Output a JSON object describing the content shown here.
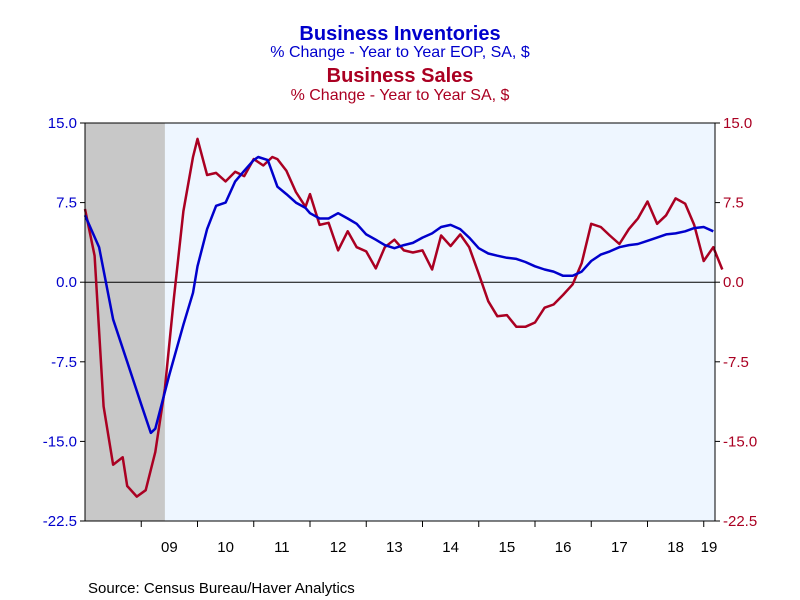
{
  "chart_data": {
    "type": "line",
    "titles": [
      {
        "text": "Business Inventories",
        "color": "#0000cc"
      },
      {
        "text": "% Change - Year to Year    EOP, SA, $",
        "color": "#0000cc"
      },
      {
        "text": "Business Sales",
        "color": "#aa0022"
      },
      {
        "text": "% Change - Year to Year    SA, $",
        "color": "#aa0022"
      }
    ],
    "source": "Source:  Census Bureau/Haver Analytics",
    "y_left": {
      "ticks": [
        "15.0",
        "7.5",
        "0.0",
        "-7.5",
        "-15.0",
        "-22.5"
      ],
      "values": [
        15,
        7.5,
        0,
        -7.5,
        -15,
        -22.5
      ],
      "range": [
        -22.5,
        15
      ],
      "color": "#0000cc"
    },
    "y_right": {
      "ticks": [
        "15.0",
        "7.5",
        "0.0",
        "-7.5",
        "-15.0",
        "-22.5"
      ],
      "values": [
        15,
        7.5,
        0,
        -7.5,
        -15,
        -22.5
      ],
      "range": [
        -22.5,
        15
      ],
      "color": "#aa0022"
    },
    "x_axis": {
      "labels": [
        "09",
        "10",
        "11",
        "12",
        "13",
        "14",
        "15",
        "16",
        "17",
        "18",
        "19"
      ],
      "positions": [
        2009.5,
        2010.5,
        2011.5,
        2012.5,
        2013.5,
        2014.5,
        2015.5,
        2016.5,
        2017.5,
        2018.5,
        2019.5
      ],
      "range": [
        2008.0,
        2019.2
      ],
      "year_boundaries": [
        2009,
        2010,
        2011,
        2012,
        2013,
        2014,
        2015,
        2016,
        2017,
        2018,
        2019
      ]
    },
    "recession": {
      "start": 2008.0,
      "end": 2009.42,
      "color": "#c8c8c8"
    },
    "plot_background": "#eef6ff",
    "zero_line": true,
    "series": [
      {
        "name": "Business Inventories",
        "color": "#0000cc",
        "points": [
          [
            2008.0,
            6.3
          ],
          [
            2008.25,
            3.3
          ],
          [
            2008.5,
            -3.5
          ],
          [
            2008.75,
            -7.5
          ],
          [
            2009.0,
            -11.5
          ],
          [
            2009.17,
            -14.2
          ],
          [
            2009.25,
            -13.8
          ],
          [
            2009.5,
            -8.7
          ],
          [
            2009.75,
            -4.0
          ],
          [
            2009.92,
            -1.0
          ],
          [
            2010.0,
            1.5
          ],
          [
            2010.17,
            5.0
          ],
          [
            2010.33,
            7.2
          ],
          [
            2010.5,
            7.5
          ],
          [
            2010.67,
            9.5
          ],
          [
            2010.83,
            10.5
          ],
          [
            2011.0,
            11.5
          ],
          [
            2011.08,
            11.8
          ],
          [
            2011.25,
            11.5
          ],
          [
            2011.42,
            9.0
          ],
          [
            2011.58,
            8.3
          ],
          [
            2011.75,
            7.5
          ],
          [
            2011.92,
            7.0
          ],
          [
            2012.0,
            6.5
          ],
          [
            2012.17,
            6.0
          ],
          [
            2012.33,
            6.0
          ],
          [
            2012.5,
            6.5
          ],
          [
            2012.67,
            6.0
          ],
          [
            2012.83,
            5.5
          ],
          [
            2013.0,
            4.5
          ],
          [
            2013.17,
            4.0
          ],
          [
            2013.33,
            3.5
          ],
          [
            2013.5,
            3.2
          ],
          [
            2013.67,
            3.5
          ],
          [
            2013.83,
            3.7
          ],
          [
            2014.0,
            4.2
          ],
          [
            2014.17,
            4.6
          ],
          [
            2014.33,
            5.2
          ],
          [
            2014.5,
            5.4
          ],
          [
            2014.67,
            5.0
          ],
          [
            2014.83,
            4.2
          ],
          [
            2015.0,
            3.2
          ],
          [
            2015.17,
            2.7
          ],
          [
            2015.33,
            2.5
          ],
          [
            2015.5,
            2.3
          ],
          [
            2015.67,
            2.2
          ],
          [
            2015.83,
            1.9
          ],
          [
            2016.0,
            1.5
          ],
          [
            2016.17,
            1.2
          ],
          [
            2016.33,
            1.0
          ],
          [
            2016.5,
            0.6
          ],
          [
            2016.67,
            0.6
          ],
          [
            2016.83,
            1.0
          ],
          [
            2017.0,
            2.0
          ],
          [
            2017.17,
            2.6
          ],
          [
            2017.33,
            2.9
          ],
          [
            2017.5,
            3.3
          ],
          [
            2017.67,
            3.5
          ],
          [
            2017.83,
            3.6
          ],
          [
            2018.0,
            3.9
          ],
          [
            2018.17,
            4.2
          ],
          [
            2018.33,
            4.5
          ],
          [
            2018.5,
            4.6
          ],
          [
            2018.67,
            4.8
          ],
          [
            2018.83,
            5.1
          ],
          [
            2019.0,
            5.2
          ],
          [
            2019.17,
            4.8
          ]
        ]
      },
      {
        "name": "Business Sales",
        "color": "#aa0022",
        "points": [
          [
            2008.0,
            6.9
          ],
          [
            2008.17,
            2.5
          ],
          [
            2008.33,
            -11.7
          ],
          [
            2008.5,
            -17.2
          ],
          [
            2008.67,
            -16.5
          ],
          [
            2008.75,
            -19.2
          ],
          [
            2008.92,
            -20.2
          ],
          [
            2009.08,
            -19.6
          ],
          [
            2009.25,
            -16.0
          ],
          [
            2009.42,
            -10.0
          ],
          [
            2009.58,
            -1.5
          ],
          [
            2009.75,
            6.7
          ],
          [
            2009.92,
            11.8
          ],
          [
            2010.0,
            13.5
          ],
          [
            2010.17,
            10.1
          ],
          [
            2010.33,
            10.3
          ],
          [
            2010.5,
            9.5
          ],
          [
            2010.67,
            10.4
          ],
          [
            2010.83,
            10.0
          ],
          [
            2011.0,
            11.6
          ],
          [
            2011.17,
            11.0
          ],
          [
            2011.33,
            11.8
          ],
          [
            2011.42,
            11.6
          ],
          [
            2011.58,
            10.5
          ],
          [
            2011.75,
            8.5
          ],
          [
            2011.92,
            7.1
          ],
          [
            2012.0,
            8.3
          ],
          [
            2012.17,
            5.4
          ],
          [
            2012.33,
            5.6
          ],
          [
            2012.5,
            3.0
          ],
          [
            2012.67,
            4.8
          ],
          [
            2012.83,
            3.3
          ],
          [
            2013.0,
            2.9
          ],
          [
            2013.17,
            1.3
          ],
          [
            2013.33,
            3.3
          ],
          [
            2013.5,
            4.0
          ],
          [
            2013.67,
            3.0
          ],
          [
            2013.83,
            2.8
          ],
          [
            2014.0,
            3.0
          ],
          [
            2014.17,
            1.2
          ],
          [
            2014.33,
            4.4
          ],
          [
            2014.5,
            3.4
          ],
          [
            2014.67,
            4.5
          ],
          [
            2014.83,
            3.3
          ],
          [
            2015.0,
            0.8
          ],
          [
            2015.17,
            -1.8
          ],
          [
            2015.33,
            -3.2
          ],
          [
            2015.5,
            -3.1
          ],
          [
            2015.67,
            -4.2
          ],
          [
            2015.83,
            -4.2
          ],
          [
            2016.0,
            -3.8
          ],
          [
            2016.17,
            -2.4
          ],
          [
            2016.33,
            -2.1
          ],
          [
            2016.5,
            -1.2
          ],
          [
            2016.67,
            -0.2
          ],
          [
            2016.83,
            1.8
          ],
          [
            2017.0,
            5.5
          ],
          [
            2017.17,
            5.2
          ],
          [
            2017.33,
            4.4
          ],
          [
            2017.5,
            3.6
          ],
          [
            2017.67,
            5.0
          ],
          [
            2017.83,
            6.0
          ],
          [
            2018.0,
            7.6
          ],
          [
            2018.17,
            5.5
          ],
          [
            2018.33,
            6.3
          ],
          [
            2018.5,
            7.9
          ],
          [
            2018.67,
            7.4
          ],
          [
            2018.83,
            5.4
          ],
          [
            2019.0,
            2.0
          ],
          [
            2019.17,
            3.3
          ],
          [
            2019.33,
            1.2
          ]
        ]
      }
    ]
  }
}
